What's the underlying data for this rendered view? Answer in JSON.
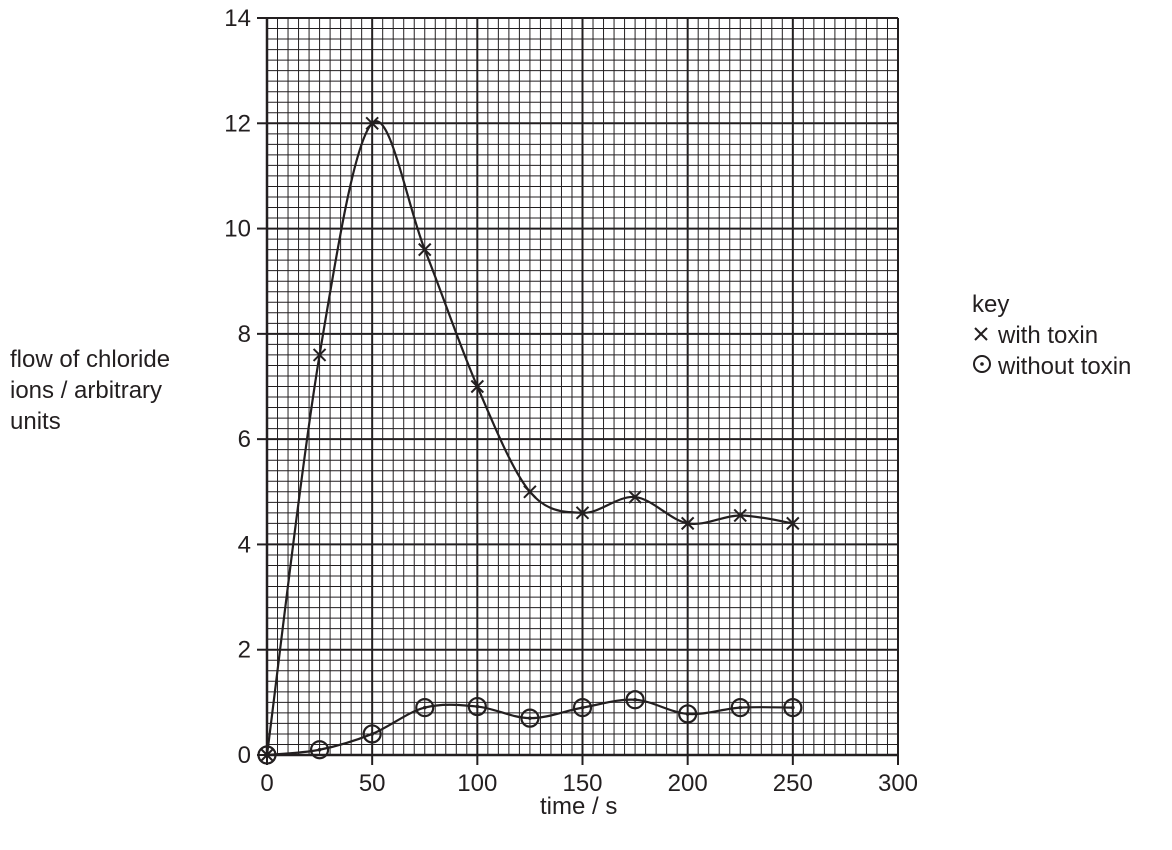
{
  "chart_data": {
    "type": "line",
    "xlabel": "time / s",
    "ylabel_lines": [
      "flow of chloride",
      "ions / arbitrary",
      "units"
    ],
    "xlim": [
      0,
      300
    ],
    "ylim": [
      0,
      14
    ],
    "x_ticks": [
      0,
      50,
      100,
      150,
      200,
      250,
      300
    ],
    "y_ticks": [
      0,
      2,
      4,
      6,
      8,
      10,
      12,
      14
    ],
    "x_minor": 5,
    "y_minor": 0.2,
    "grid": true,
    "legend_placement": "right",
    "legend_title": "key",
    "series": [
      {
        "name": "with toxin",
        "marker": "x",
        "x": [
          0,
          25,
          50,
          75,
          100,
          125,
          150,
          175,
          200,
          225,
          250
        ],
        "y": [
          0,
          7.6,
          12.0,
          9.6,
          7.0,
          5.0,
          4.6,
          4.9,
          4.4,
          4.55,
          4.4
        ]
      },
      {
        "name": "without toxin",
        "marker": "circle-dot",
        "x": [
          0,
          25,
          50,
          75,
          100,
          125,
          150,
          175,
          200,
          225,
          250
        ],
        "y": [
          0,
          0.1,
          0.4,
          0.9,
          0.92,
          0.7,
          0.9,
          1.05,
          0.78,
          0.9,
          0.9
        ]
      }
    ],
    "colors": {
      "ink": "#231f20",
      "background": "#ffffff"
    }
  }
}
